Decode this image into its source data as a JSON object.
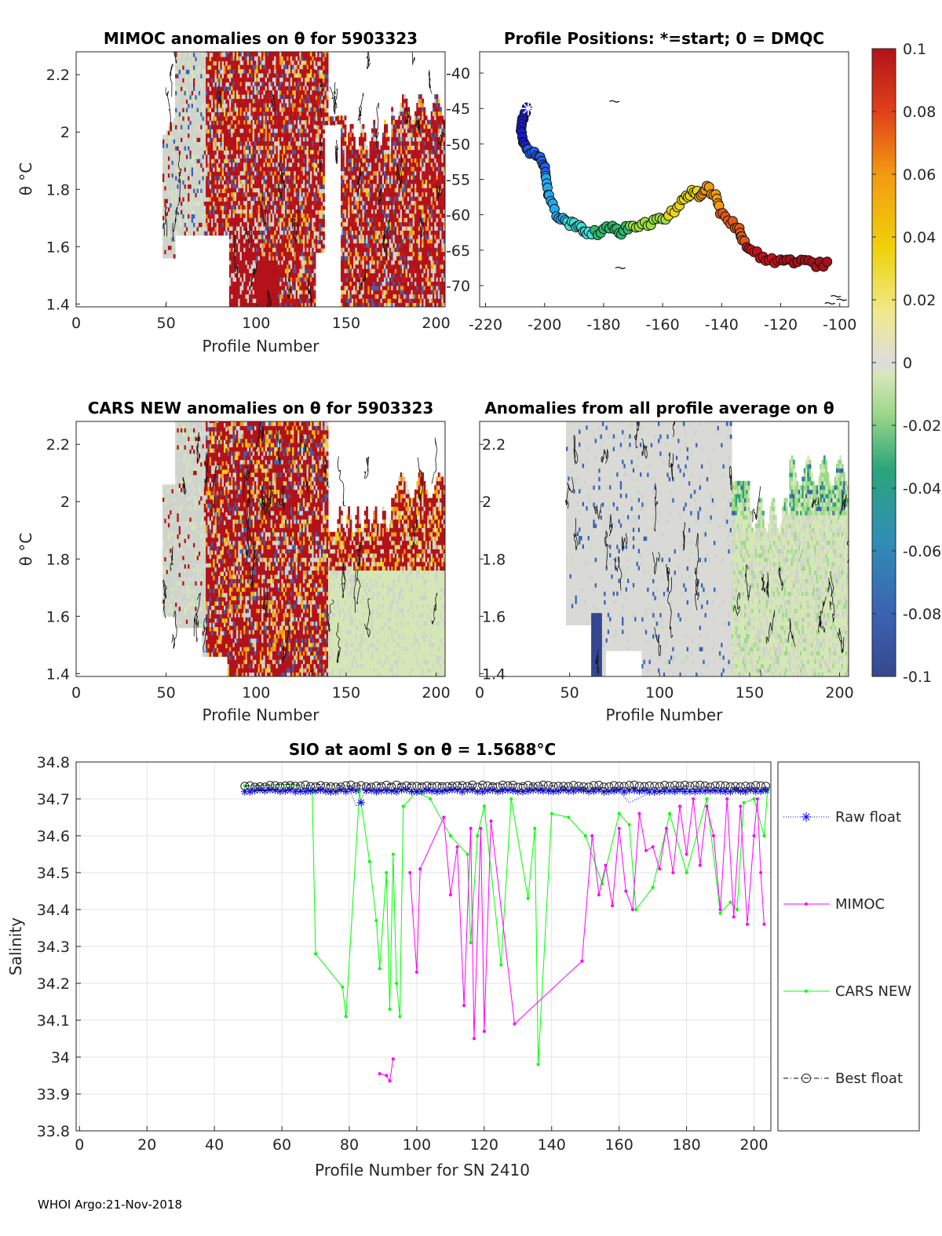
{
  "footer": "WHOI Argo:21-Nov-2018",
  "colorbar": {
    "min": -0.1,
    "max": 0.1,
    "ticks": [
      "0.1",
      "0.08",
      "0.06",
      "0.04",
      "0.02",
      "0",
      "-0.02",
      "-0.04",
      "-0.06",
      "-0.08",
      "-0.1"
    ]
  },
  "chart_data": [
    {
      "id": "mimoc",
      "type": "heatmap",
      "title": "MIMOC anomalies on θ  for 5903323",
      "xlabel": "Profile Number",
      "ylabel": "θ °C",
      "xlim": [
        0,
        205
      ],
      "ylim": [
        1.39,
        2.28
      ],
      "xticks": [
        0,
        50,
        100,
        150,
        200
      ],
      "yticks": [
        1.4,
        1.6,
        1.8,
        2,
        2.2
      ],
      "ytick_labels": [
        "1.4",
        "1.6",
        "1.8",
        "2",
        "2.2"
      ],
      "data_start_profile": 48,
      "data_end_profile": 205,
      "dominant_anomaly": "positive (red, >= 0.1)"
    },
    {
      "id": "positions",
      "type": "scatter",
      "title": "Profile Positions: *=start; 0 = DMQC",
      "xlim": [
        -222,
        -97
      ],
      "ylim": [
        -73,
        -37
      ],
      "xticks": [
        -220,
        -200,
        -180,
        -160,
        -140,
        -120,
        -100
      ],
      "yticks": [
        -40,
        -45,
        -50,
        -55,
        -60,
        -65,
        -70
      ],
      "track": [
        [
          -206,
          -45
        ],
        [
          -207.5,
          -46.5
        ],
        [
          -208,
          -48
        ],
        [
          -207,
          -50
        ],
        [
          -205,
          -51
        ],
        [
          -202,
          -51.5
        ],
        [
          -200,
          -53
        ],
        [
          -199.5,
          -55
        ],
        [
          -198.5,
          -57.5
        ],
        [
          -196,
          -60
        ],
        [
          -193,
          -61
        ],
        [
          -190,
          -61.5
        ],
        [
          -187.5,
          -62
        ],
        [
          -185,
          -62.5
        ],
        [
          -181,
          -62.5
        ],
        [
          -177,
          -61.5
        ],
        [
          -174,
          -62.5
        ],
        [
          -171,
          -61.5
        ],
        [
          -167,
          -61.5
        ],
        [
          -163,
          -61
        ],
        [
          -159,
          -60.5
        ],
        [
          -155,
          -59
        ],
        [
          -152,
          -57.5
        ],
        [
          -149.5,
          -56.5
        ],
        [
          -147,
          -57.5
        ],
        [
          -145,
          -56
        ],
        [
          -142,
          -57.5
        ],
        [
          -140.5,
          -59.5
        ],
        [
          -137,
          -61
        ],
        [
          -134,
          -62
        ],
        [
          -133,
          -63.5
        ],
        [
          -130,
          -65
        ],
        [
          -126,
          -66
        ],
        [
          -122,
          -66.5
        ],
        [
          -118,
          -66.5
        ],
        [
          -113,
          -66.5
        ],
        [
          -108,
          -67
        ],
        [
          -103,
          -67
        ]
      ],
      "start_marker": [
        -205.5,
        -45
      ]
    },
    {
      "id": "cars",
      "type": "heatmap",
      "title": "CARS NEW anomalies on θ for 5903323",
      "xlabel": "Profile Number",
      "ylabel": "θ °C",
      "xlim": [
        0,
        205
      ],
      "ylim": [
        1.39,
        2.28
      ],
      "xticks": [
        0,
        50,
        100,
        150,
        200
      ],
      "yticks": [
        1.4,
        1.6,
        1.8,
        2,
        2.2
      ],
      "ytick_labels": [
        "1.4",
        "1.6",
        "1.8",
        "2",
        "2.2"
      ],
      "data_start_profile": 48,
      "data_end_profile": 205,
      "dominant_anomaly": "positive (red, >= 0.1)"
    },
    {
      "id": "allavg",
      "type": "heatmap",
      "title": "Anomalies from all profile average on θ",
      "xlabel": "Profile Number",
      "xlim": [
        0,
        205
      ],
      "ylim": [
        1.39,
        2.28
      ],
      "xticks": [
        0,
        50,
        100,
        150,
        200
      ],
      "yticks": [
        1.4,
        1.6,
        1.8,
        2,
        2.2
      ],
      "ytick_labels": [
        "1.4",
        "1.6",
        "1.8",
        "2",
        "2.2"
      ],
      "data_start_profile": 48,
      "data_end_profile": 205,
      "dominant_anomaly": "near zero (grey), slightly negative (green) after profile 140"
    },
    {
      "id": "salinity",
      "type": "line",
      "title": "SIO at aoml S on θ = 1.5688°C",
      "xlabel": "Profile Number for SN 2410",
      "ylabel": "Salinity",
      "xlim": [
        -1,
        205
      ],
      "ylim": [
        33.8,
        34.8
      ],
      "xticks": [
        0,
        20,
        40,
        60,
        80,
        100,
        120,
        140,
        160,
        180,
        200
      ],
      "yticks": [
        33.8,
        33.9,
        34,
        34.1,
        34.2,
        34.3,
        34.4,
        34.5,
        34.6,
        34.7,
        34.8
      ],
      "ytick_labels": [
        "33.8",
        "33.9",
        "34",
        "34.1",
        "34.2",
        "34.3",
        "34.4",
        "34.5",
        "34.6",
        "34.7",
        "34.8"
      ],
      "series": [
        {
          "name": "Raw float",
          "color": "#0000ff",
          "marker": "*",
          "line": "dotted",
          "x": [
            49,
            63,
            65,
            66,
            67,
            70,
            79,
            80,
            82,
            83,
            85,
            90,
            95,
            100,
            110,
            120,
            130,
            140,
            150,
            160,
            163,
            170,
            180,
            190,
            200,
            204
          ],
          "y": [
            34.72,
            34.73,
            34.725,
            34.72,
            34.73,
            34.73,
            34.72,
            34.73,
            34.68,
            34.69,
            34.725,
            34.725,
            34.725,
            34.725,
            34.725,
            34.725,
            34.725,
            34.725,
            34.72,
            34.72,
            34.69,
            34.72,
            34.72,
            34.72,
            34.72,
            34.72
          ]
        },
        {
          "name": "MIMOC",
          "color": "#ff00ff",
          "marker": ".",
          "line": "solid",
          "x": [
            98,
            100,
            101,
            108,
            110,
            112,
            114,
            116,
            117,
            119,
            120,
            122,
            129,
            149,
            152,
            154,
            156,
            158,
            160,
            162,
            164,
            166,
            168,
            170,
            172,
            174,
            176,
            178,
            180,
            182,
            184,
            186,
            188,
            190,
            192,
            194,
            196,
            198,
            200,
            201,
            202,
            203
          ],
          "y": [
            34.5,
            34.23,
            34.51,
            34.65,
            34.44,
            34.57,
            34.14,
            34.62,
            34.05,
            34.62,
            34.07,
            34.64,
            34.09,
            34.26,
            34.6,
            34.44,
            34.52,
            34.41,
            34.62,
            34.45,
            34.4,
            34.66,
            34.56,
            34.57,
            34.51,
            34.62,
            34.5,
            34.68,
            34.55,
            34.7,
            34.52,
            34.68,
            34.6,
            34.4,
            34.7,
            34.38,
            34.68,
            34.36,
            34.6,
            34.7,
            34.5,
            34.36
          ],
          "islands": [
            {
              "x": [
                89,
                91,
                92,
                93
              ],
              "y": [
                33.955,
                33.95,
                33.935,
                33.995
              ]
            }
          ]
        },
        {
          "name": "CARS NEW",
          "color": "#00ff00",
          "marker": ".",
          "line": "solid",
          "x": [
            49,
            63,
            69,
            70,
            78,
            79,
            83,
            86,
            88,
            89,
            91,
            92,
            93,
            94,
            95,
            96,
            100,
            104,
            110,
            115,
            116,
            118,
            120,
            125,
            128,
            133,
            135,
            136,
            140,
            145,
            150,
            155,
            160,
            163,
            165,
            170,
            175,
            180,
            186,
            190,
            193,
            195,
            197,
            200,
            203,
            204
          ],
          "y": [
            34.735,
            34.74,
            34.72,
            34.28,
            34.19,
            34.11,
            34.72,
            34.53,
            34.37,
            34.24,
            34.5,
            34.13,
            34.55,
            34.2,
            34.11,
            34.68,
            34.72,
            34.7,
            34.6,
            34.55,
            34.31,
            34.6,
            34.68,
            34.25,
            34.7,
            34.43,
            34.62,
            33.98,
            34.66,
            34.65,
            34.6,
            34.47,
            34.66,
            34.63,
            34.4,
            34.46,
            34.66,
            34.5,
            34.7,
            34.39,
            34.42,
            34.4,
            34.69,
            34.7,
            34.6,
            34.72
          ]
        },
        {
          "name": "Best float",
          "color": "#000000",
          "marker": "o",
          "line": "dashdot",
          "x": [
            49,
            63,
            67,
            70,
            80,
            90,
            100,
            110,
            120,
            130,
            140,
            150,
            160,
            170,
            180,
            190,
            200,
            204
          ],
          "y": [
            34.735,
            34.74,
            34.735,
            34.74,
            34.735,
            34.74,
            34.74,
            34.74,
            34.74,
            34.74,
            34.735,
            34.73,
            34.73,
            34.73,
            34.735,
            34.73,
            34.73,
            34.73
          ]
        }
      ]
    }
  ]
}
